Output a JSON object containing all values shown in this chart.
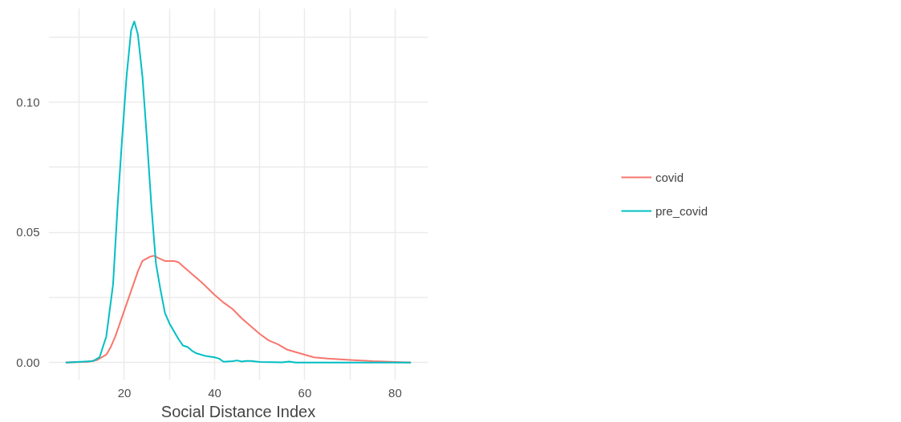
{
  "chart_data": {
    "type": "line",
    "xlabel": "Social Distance Index",
    "xlim": [
      3.2,
      87.3
    ],
    "ylim": [
      -0.0067,
      0.136
    ],
    "xticks": [
      {
        "value": 10,
        "label": null
      },
      20,
      {
        "value": 30,
        "label": null
      },
      40,
      {
        "value": 50,
        "label": null
      },
      60,
      {
        "value": 70,
        "label": null
      },
      80
    ],
    "yticks": [
      {
        "value": 0,
        "label": "0.00"
      },
      {
        "value": 0.025,
        "label": null
      },
      {
        "value": 0.05,
        "label": "0.05"
      },
      {
        "value": 0.075,
        "label": null
      },
      {
        "value": 0.1,
        "label": "0.10"
      },
      {
        "value": 0.125,
        "label": null
      }
    ],
    "grid": true,
    "legend": "right",
    "line_style": "solid",
    "series": [
      {
        "name": "covid",
        "color": "#f8766d",
        "x": [
          7,
          12,
          14,
          16,
          17,
          18,
          19,
          20,
          21,
          22,
          23,
          24,
          25.5,
          26.5,
          28,
          29,
          31,
          32,
          33,
          35,
          37,
          40,
          42,
          44,
          46,
          48,
          50,
          52,
          54,
          56,
          58,
          60,
          62,
          65,
          70,
          75,
          80,
          83.5
        ],
        "values": [
          0,
          0.0003,
          0.001,
          0.003,
          0.006,
          0.01,
          0.015,
          0.02,
          0.025,
          0.03,
          0.035,
          0.039,
          0.0405,
          0.041,
          0.0398,
          0.039,
          0.039,
          0.0385,
          0.037,
          0.034,
          0.031,
          0.026,
          0.023,
          0.0205,
          0.017,
          0.014,
          0.011,
          0.0085,
          0.007,
          0.005,
          0.004,
          0.003,
          0.002,
          0.0015,
          0.001,
          0.0005,
          0.0002,
          0
        ]
      },
      {
        "name": "pre_covid",
        "color": "#00bfc4",
        "x": [
          7,
          13,
          14.5,
          16,
          17.5,
          18.5,
          19.5,
          20.5,
          21.5,
          22.2,
          23,
          24,
          25,
          26,
          27,
          28,
          29,
          30,
          31,
          32,
          33,
          34,
          35,
          36,
          38,
          40,
          41,
          42,
          44,
          45,
          46,
          47,
          48,
          50,
          55,
          56.5,
          58,
          83.5
        ],
        "values": [
          0,
          0.0005,
          0.002,
          0.01,
          0.03,
          0.06,
          0.086,
          0.11,
          0.1276,
          0.131,
          0.126,
          0.11,
          0.086,
          0.06,
          0.038,
          0.028,
          0.019,
          0.015,
          0.012,
          0.009,
          0.0065,
          0.006,
          0.0045,
          0.0035,
          0.0025,
          0.002,
          0.0015,
          0.0003,
          0.0005,
          0.0008,
          0.0004,
          0.0006,
          0.0006,
          0.0002,
          0.0001,
          0.0004,
          0,
          0
        ]
      }
    ]
  }
}
